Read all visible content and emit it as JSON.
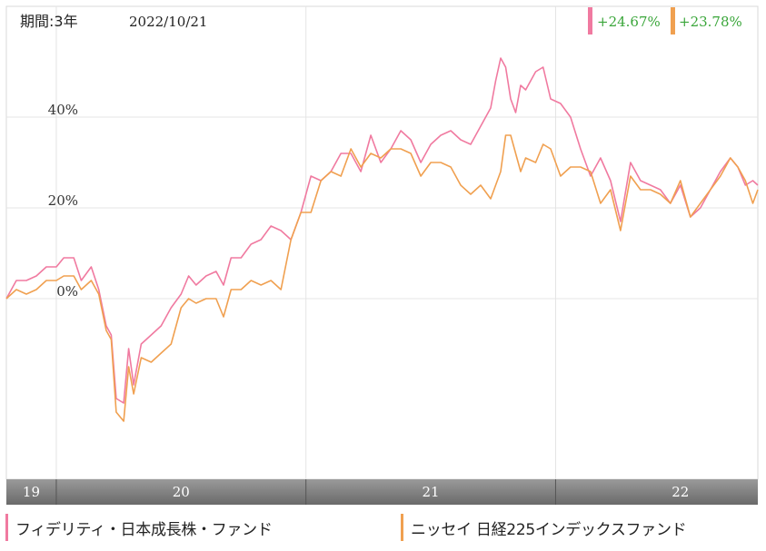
{
  "header": {
    "period": "期間:3年",
    "date": "2022/10/21"
  },
  "returns": [
    {
      "series": "fidelity",
      "value": "+24.67%",
      "color": "#f07aa0",
      "text_color": "#3aa63a"
    },
    {
      "series": "nissay",
      "value": "+23.78%",
      "color": "#f0a050",
      "text_color": "#3aa63a"
    }
  ],
  "legend": [
    {
      "label": "フィデリティ・日本成長株・ファンド",
      "color": "#f07aa0"
    },
    {
      "label": "ニッセイ 日経225インデックスファンド",
      "color": "#f0a050"
    }
  ],
  "chart_data": {
    "type": "line",
    "x_unit": "years",
    "xlim": [
      2019.8,
      2022.81
    ],
    "x_ticks": [
      {
        "label": "19",
        "x": 2019.9
      },
      {
        "label": "20",
        "x": 2020.5
      },
      {
        "label": "21",
        "x": 2021.5
      },
      {
        "label": "22",
        "x": 2022.5
      }
    ],
    "year_boundaries": [
      2020.0,
      2021.0,
      2022.0
    ],
    "ylim": [
      -45,
      55
    ],
    "y_ticks": [
      {
        "label": "0%",
        "y": 0
      },
      {
        "label": "20%",
        "y": 20
      },
      {
        "label": "40%",
        "y": 40
      }
    ],
    "grid": true,
    "series": [
      {
        "name": "フィデリティ・日本成長株・ファンド",
        "color": "#f07aa0",
        "points": [
          [
            2019.8,
            0
          ],
          [
            2019.84,
            4
          ],
          [
            2019.88,
            4
          ],
          [
            2019.92,
            5
          ],
          [
            2019.96,
            7
          ],
          [
            2020.0,
            7
          ],
          [
            2020.03,
            9
          ],
          [
            2020.07,
            9
          ],
          [
            2020.1,
            4
          ],
          [
            2020.14,
            7
          ],
          [
            2020.17,
            2
          ],
          [
            2020.2,
            -6
          ],
          [
            2020.22,
            -8
          ],
          [
            2020.24,
            -22
          ],
          [
            2020.27,
            -23
          ],
          [
            2020.29,
            -11
          ],
          [
            2020.31,
            -19
          ],
          [
            2020.34,
            -10
          ],
          [
            2020.38,
            -8
          ],
          [
            2020.42,
            -6
          ],
          [
            2020.46,
            -2
          ],
          [
            2020.5,
            1
          ],
          [
            2020.53,
            5
          ],
          [
            2020.56,
            3
          ],
          [
            2020.6,
            5
          ],
          [
            2020.64,
            6
          ],
          [
            2020.67,
            3
          ],
          [
            2020.7,
            9
          ],
          [
            2020.74,
            9
          ],
          [
            2020.78,
            12
          ],
          [
            2020.82,
            13
          ],
          [
            2020.86,
            16
          ],
          [
            2020.9,
            15
          ],
          [
            2020.94,
            13
          ],
          [
            2020.98,
            19
          ],
          [
            2021.02,
            27
          ],
          [
            2021.06,
            26
          ],
          [
            2021.1,
            28
          ],
          [
            2021.14,
            32
          ],
          [
            2021.18,
            32
          ],
          [
            2021.22,
            28
          ],
          [
            2021.26,
            36
          ],
          [
            2021.3,
            30
          ],
          [
            2021.34,
            33
          ],
          [
            2021.38,
            37
          ],
          [
            2021.42,
            35
          ],
          [
            2021.46,
            30
          ],
          [
            2021.5,
            34
          ],
          [
            2021.54,
            36
          ],
          [
            2021.58,
            37
          ],
          [
            2021.62,
            35
          ],
          [
            2021.66,
            34
          ],
          [
            2021.7,
            38
          ],
          [
            2021.74,
            42
          ],
          [
            2021.76,
            48
          ],
          [
            2021.78,
            53
          ],
          [
            2021.8,
            51
          ],
          [
            2021.82,
            44
          ],
          [
            2021.84,
            41
          ],
          [
            2021.86,
            47
          ],
          [
            2021.88,
            46
          ],
          [
            2021.92,
            50
          ],
          [
            2021.95,
            51
          ],
          [
            2021.98,
            44
          ],
          [
            2022.02,
            43
          ],
          [
            2022.06,
            40
          ],
          [
            2022.1,
            33
          ],
          [
            2022.14,
            27
          ],
          [
            2022.18,
            31
          ],
          [
            2022.22,
            26
          ],
          [
            2022.26,
            17
          ],
          [
            2022.3,
            30
          ],
          [
            2022.34,
            26
          ],
          [
            2022.38,
            25
          ],
          [
            2022.42,
            24
          ],
          [
            2022.46,
            21
          ],
          [
            2022.5,
            25
          ],
          [
            2022.54,
            18
          ],
          [
            2022.58,
            20
          ],
          [
            2022.62,
            24
          ],
          [
            2022.66,
            28
          ],
          [
            2022.7,
            31
          ],
          [
            2022.73,
            29
          ],
          [
            2022.76,
            25
          ],
          [
            2022.79,
            26
          ],
          [
            2022.81,
            25
          ]
        ]
      },
      {
        "name": "ニッセイ 日経225インデックスファンド",
        "color": "#f0a050",
        "points": [
          [
            2019.8,
            0
          ],
          [
            2019.84,
            2
          ],
          [
            2019.88,
            1
          ],
          [
            2019.92,
            2
          ],
          [
            2019.96,
            4
          ],
          [
            2020.0,
            4
          ],
          [
            2020.03,
            5
          ],
          [
            2020.07,
            5
          ],
          [
            2020.1,
            2
          ],
          [
            2020.14,
            4
          ],
          [
            2020.17,
            1
          ],
          [
            2020.2,
            -7
          ],
          [
            2020.22,
            -9
          ],
          [
            2020.24,
            -25
          ],
          [
            2020.27,
            -27
          ],
          [
            2020.29,
            -15
          ],
          [
            2020.31,
            -21
          ],
          [
            2020.34,
            -13
          ],
          [
            2020.38,
            -14
          ],
          [
            2020.42,
            -12
          ],
          [
            2020.46,
            -10
          ],
          [
            2020.5,
            -2
          ],
          [
            2020.53,
            0
          ],
          [
            2020.56,
            -1
          ],
          [
            2020.6,
            0
          ],
          [
            2020.64,
            0
          ],
          [
            2020.67,
            -4
          ],
          [
            2020.7,
            2
          ],
          [
            2020.74,
            2
          ],
          [
            2020.78,
            4
          ],
          [
            2020.82,
            3
          ],
          [
            2020.86,
            4
          ],
          [
            2020.9,
            2
          ],
          [
            2020.94,
            13
          ],
          [
            2020.98,
            19
          ],
          [
            2021.02,
            19
          ],
          [
            2021.06,
            26
          ],
          [
            2021.1,
            28
          ],
          [
            2021.14,
            27
          ],
          [
            2021.18,
            33
          ],
          [
            2021.22,
            29
          ],
          [
            2021.26,
            32
          ],
          [
            2021.3,
            31
          ],
          [
            2021.34,
            33
          ],
          [
            2021.38,
            33
          ],
          [
            2021.42,
            32
          ],
          [
            2021.46,
            27
          ],
          [
            2021.5,
            30
          ],
          [
            2021.54,
            30
          ],
          [
            2021.58,
            29
          ],
          [
            2021.62,
            25
          ],
          [
            2021.66,
            23
          ],
          [
            2021.7,
            25
          ],
          [
            2021.74,
            22
          ],
          [
            2021.78,
            28
          ],
          [
            2021.8,
            36
          ],
          [
            2021.82,
            36
          ],
          [
            2021.84,
            32
          ],
          [
            2021.86,
            28
          ],
          [
            2021.88,
            31
          ],
          [
            2021.92,
            30
          ],
          [
            2021.95,
            34
          ],
          [
            2021.98,
            33
          ],
          [
            2022.02,
            27
          ],
          [
            2022.06,
            29
          ],
          [
            2022.1,
            29
          ],
          [
            2022.14,
            28
          ],
          [
            2022.18,
            21
          ],
          [
            2022.22,
            24
          ],
          [
            2022.26,
            15
          ],
          [
            2022.3,
            27
          ],
          [
            2022.34,
            24
          ],
          [
            2022.38,
            24
          ],
          [
            2022.42,
            23
          ],
          [
            2022.46,
            21
          ],
          [
            2022.5,
            26
          ],
          [
            2022.54,
            18
          ],
          [
            2022.58,
            21
          ],
          [
            2022.62,
            24
          ],
          [
            2022.66,
            27
          ],
          [
            2022.7,
            31
          ],
          [
            2022.73,
            29
          ],
          [
            2022.76,
            26
          ],
          [
            2022.79,
            21
          ],
          [
            2022.81,
            24
          ]
        ]
      }
    ]
  }
}
